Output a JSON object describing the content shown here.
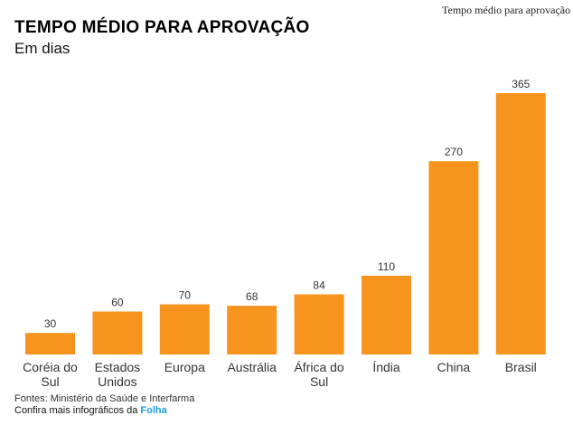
{
  "image_alt": "Tempo médio para aprovação",
  "chart_data": {
    "type": "bar",
    "title": "TEMPO MÉDIO PARA APROVAÇÃO",
    "subtitle": "Em dias",
    "categories": [
      [
        "Coréia do",
        "Sul"
      ],
      [
        "Estados",
        "Unidos"
      ],
      [
        "Europa"
      ],
      [
        "Austrália"
      ],
      [
        "África do",
        "Sul"
      ],
      [
        "Índia"
      ],
      [
        "China"
      ],
      [
        "Brasil"
      ]
    ],
    "values": [
      30,
      60,
      70,
      68,
      84,
      110,
      270,
      365
    ],
    "ylim": [
      0,
      365
    ],
    "grid": false,
    "bar_color": "#f7941d"
  },
  "footer": {
    "source": "Fontes: Ministério da Saúde e Interfarma",
    "more_prefix": "Confira mais infográficos da",
    "more_link": "Folha"
  }
}
